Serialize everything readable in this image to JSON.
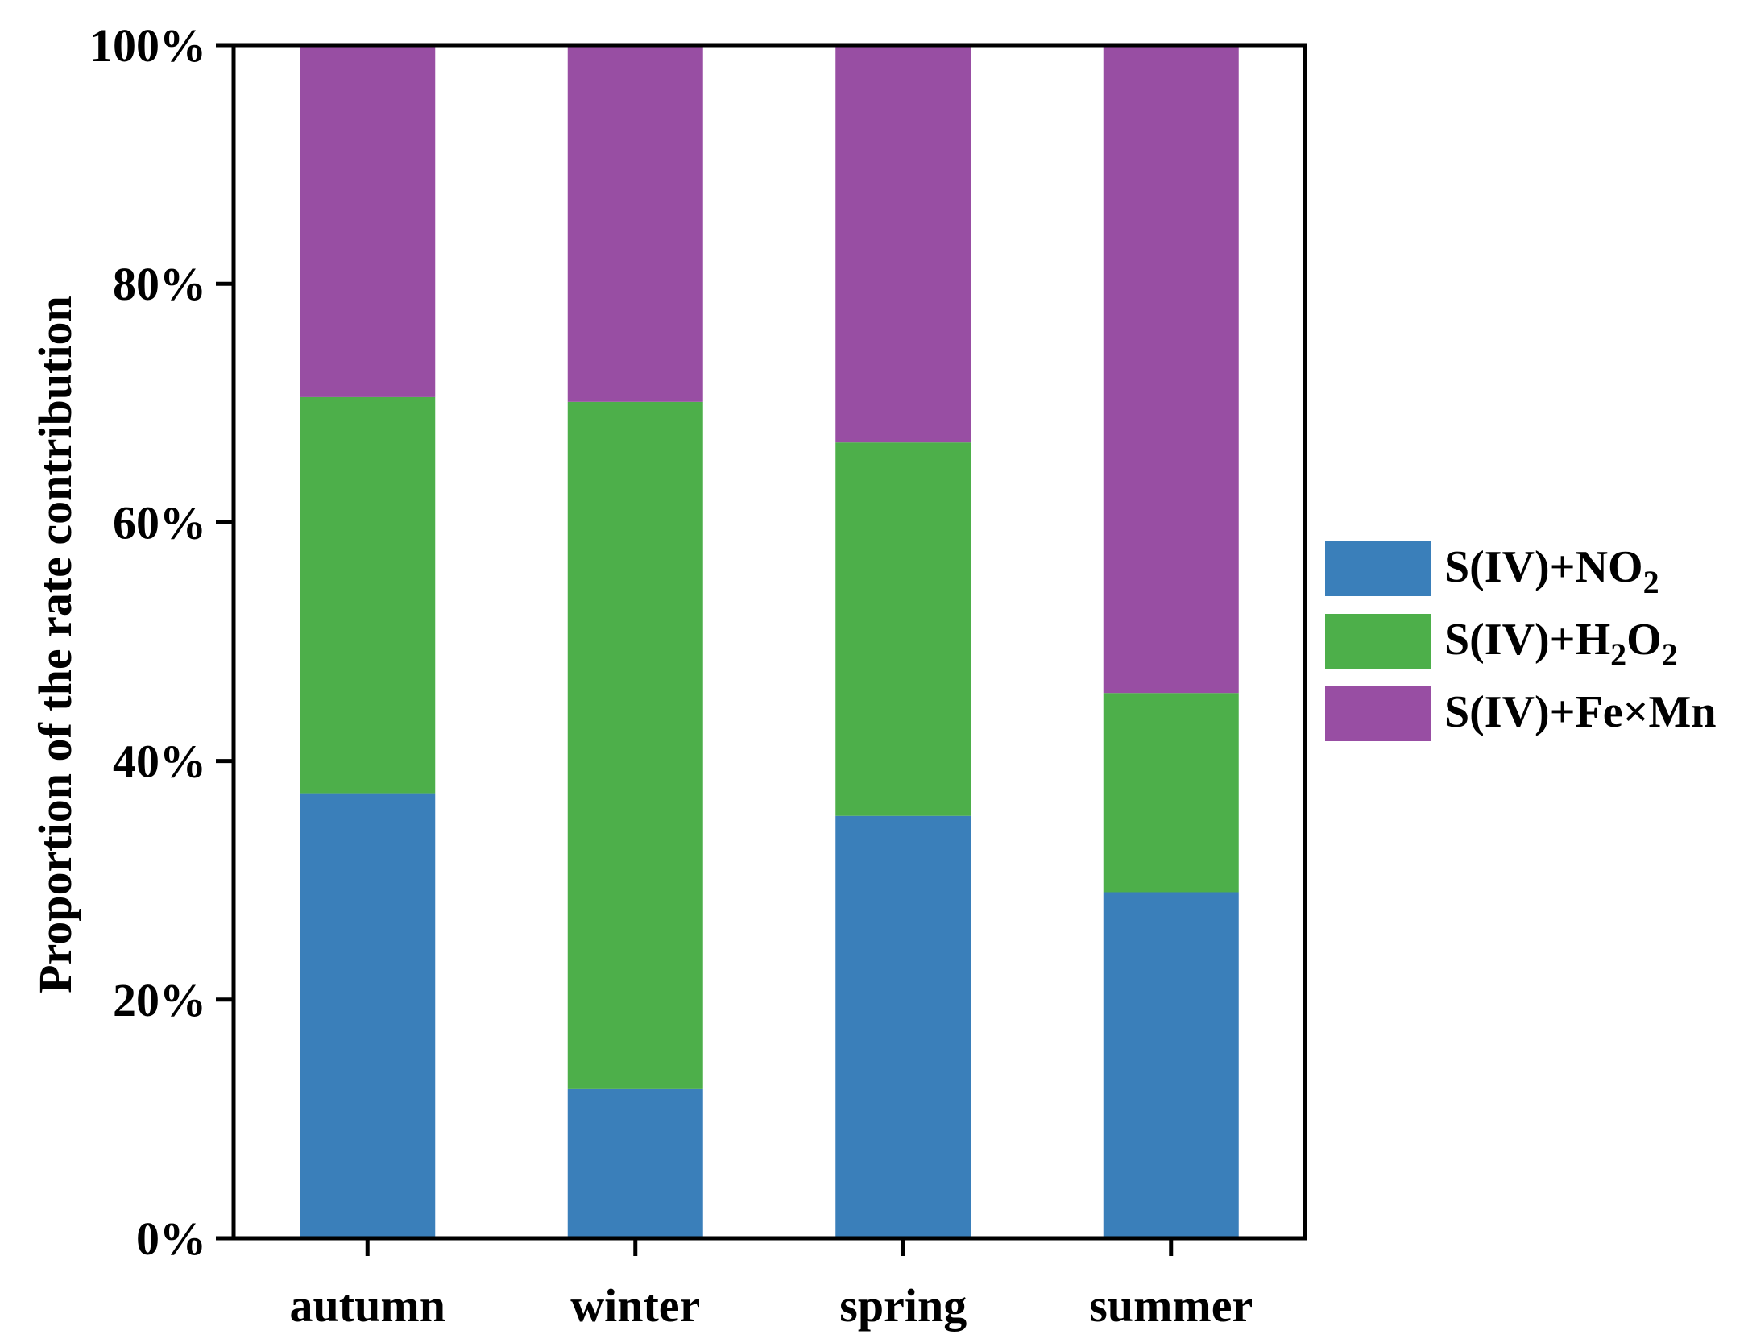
{
  "chart_data": {
    "type": "bar",
    "stacked": true,
    "title": "",
    "xlabel": "",
    "ylabel": "Proportion of the rate contribution",
    "ylim": [
      0,
      100
    ],
    "yticks": [
      "0%",
      "20%",
      "40%",
      "60%",
      "80%",
      "100%"
    ],
    "categories": [
      "autumn",
      "winter",
      "spring",
      "summer"
    ],
    "series": [
      {
        "name": "S(IV)+NO2",
        "label_main": "S(IV)+NO",
        "label_sub": "2",
        "color": "#3a7fba",
        "values": [
          37.3,
          12.5,
          35.4,
          29.0
        ]
      },
      {
        "name": "S(IV)+H2O2",
        "label_main": "S(IV)+H",
        "label_sub": "2",
        "label_mid": "O",
        "label_sub2": "2",
        "color": "#4daf4a",
        "values": [
          33.2,
          57.6,
          31.3,
          16.7
        ]
      },
      {
        "name": "S(IV)+Fe×Mn",
        "label_main": "S(IV)+Fe×Mn",
        "color": "#984ea3",
        "values": [
          29.5,
          29.9,
          33.3,
          54.3
        ]
      }
    ],
    "legend_position": "right"
  }
}
